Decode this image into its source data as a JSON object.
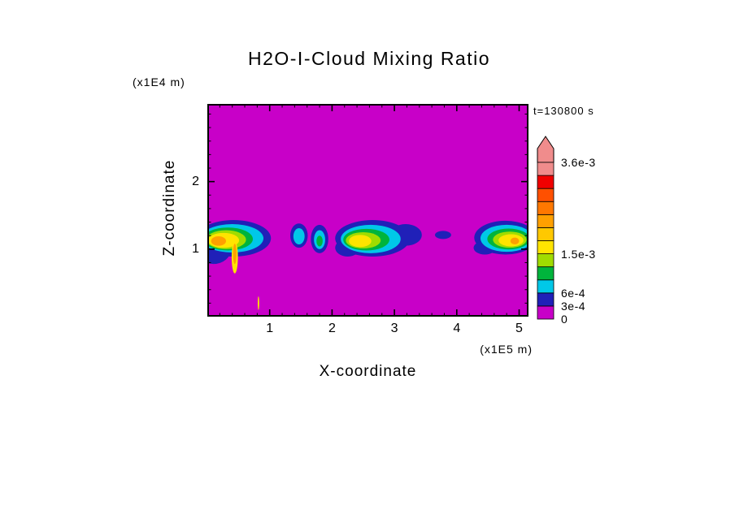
{
  "chart_data": {
    "type": "heatmap",
    "title": "H2O-I-Cloud Mixing Ratio",
    "time_label": "t=130800 s",
    "x_axis": {
      "label": "X-coordinate",
      "unit": "(x1E5 m)",
      "range": [
        0,
        5.15
      ],
      "major_ticks": [
        1,
        2,
        3,
        4,
        5
      ],
      "minor_step": 0.2
    },
    "z_axis": {
      "label": "Z-coordinate",
      "unit": "(x1E4 m)",
      "range": [
        0,
        3.15
      ],
      "major_ticks": [
        1,
        2
      ],
      "minor_step": 0.2
    },
    "background_color": "#c800c8",
    "background_value": 0,
    "colorbar": {
      "levels": [
        0,
        0.0003,
        0.0006,
        0.0009,
        0.0012,
        0.0015,
        0.0018,
        0.0021,
        0.0024,
        0.0027,
        0.003,
        0.0033,
        0.0036
      ],
      "colors": [
        "#c800c8",
        "#2020b8",
        "#00c8e8",
        "#00b43c",
        "#a0dc00",
        "#ffe400",
        "#ffc800",
        "#ffa000",
        "#ff7800",
        "#ff5000",
        "#f00000",
        "#f08c8c"
      ],
      "overflow_color": "#f08c8c",
      "labels": [
        {
          "text": "3.6e-3",
          "value": 0.0036
        },
        {
          "text": "1.5e-3",
          "value": 0.0015
        },
        {
          "text": "6e-4",
          "value": 0.0006
        },
        {
          "text": "3e-4",
          "value": 0.0003
        },
        {
          "text": "0",
          "value": 0
        }
      ]
    },
    "features": [
      {
        "x": 0.42,
        "z": 1.16,
        "rx": 0.6,
        "rz": 0.27,
        "v": 0.0004
      },
      {
        "x": 0.1,
        "z": 1.0,
        "rx": 0.28,
        "rz": 0.22,
        "v": 0.0004
      },
      {
        "x": 0.78,
        "z": 1.24,
        "rx": 0.17,
        "rz": 0.11,
        "v": 0.0004
      },
      {
        "x": 0.4,
        "z": 1.16,
        "rx": 0.5,
        "rz": 0.21,
        "v": 0.0007
      },
      {
        "x": 0.33,
        "z": 1.15,
        "rx": 0.4,
        "rz": 0.17,
        "v": 0.001
      },
      {
        "x": 0.3,
        "z": 1.14,
        "rx": 0.32,
        "rz": 0.14,
        "v": 0.0013
      },
      {
        "x": 0.26,
        "z": 1.13,
        "rx": 0.25,
        "rz": 0.11,
        "v": 0.0016
      },
      {
        "x": 0.18,
        "z": 1.12,
        "rx": 0.12,
        "rz": 0.07,
        "v": 0.0022
      },
      {
        "x": 0.44,
        "z": 0.88,
        "rx": 0.05,
        "rz": 0.24,
        "v": 0.0016
      },
      {
        "x": 0.44,
        "z": 0.93,
        "rx": 0.028,
        "rz": 0.15,
        "v": 0.0022
      },
      {
        "x": 1.47,
        "z": 1.2,
        "rx": 0.14,
        "rz": 0.18,
        "v": 0.0004
      },
      {
        "x": 1.47,
        "z": 1.19,
        "rx": 0.09,
        "rz": 0.12,
        "v": 0.0007
      },
      {
        "x": 1.8,
        "z": 1.15,
        "rx": 0.14,
        "rz": 0.21,
        "v": 0.0004
      },
      {
        "x": 1.8,
        "z": 1.14,
        "rx": 0.09,
        "rz": 0.14,
        "v": 0.0007
      },
      {
        "x": 1.8,
        "z": 1.12,
        "rx": 0.05,
        "rz": 0.08,
        "v": 0.001
      },
      {
        "x": 2.65,
        "z": 1.16,
        "rx": 0.6,
        "rz": 0.27,
        "v": 0.0004
      },
      {
        "x": 3.18,
        "z": 1.21,
        "rx": 0.26,
        "rz": 0.16,
        "v": 0.0004
      },
      {
        "x": 2.25,
        "z": 1.02,
        "rx": 0.2,
        "rz": 0.13,
        "v": 0.0004
      },
      {
        "x": 2.62,
        "z": 1.15,
        "rx": 0.48,
        "rz": 0.21,
        "v": 0.0007
      },
      {
        "x": 2.55,
        "z": 1.14,
        "rx": 0.37,
        "rz": 0.16,
        "v": 0.001
      },
      {
        "x": 2.5,
        "z": 1.13,
        "rx": 0.28,
        "rz": 0.12,
        "v": 0.0013
      },
      {
        "x": 2.45,
        "z": 1.12,
        "rx": 0.18,
        "rz": 0.09,
        "v": 0.0016
      },
      {
        "x": 3.78,
        "z": 1.21,
        "rx": 0.13,
        "rz": 0.06,
        "v": 0.0004
      },
      {
        "x": 4.78,
        "z": 1.17,
        "rx": 0.5,
        "rz": 0.25,
        "v": 0.0004
      },
      {
        "x": 4.45,
        "z": 1.02,
        "rx": 0.18,
        "rz": 0.1,
        "v": 0.0004
      },
      {
        "x": 4.8,
        "z": 1.16,
        "rx": 0.42,
        "rz": 0.2,
        "v": 0.0007
      },
      {
        "x": 4.83,
        "z": 1.15,
        "rx": 0.34,
        "rz": 0.155,
        "v": 0.001
      },
      {
        "x": 4.85,
        "z": 1.14,
        "rx": 0.27,
        "rz": 0.12,
        "v": 0.0013
      },
      {
        "x": 4.87,
        "z": 1.13,
        "rx": 0.2,
        "rz": 0.09,
        "v": 0.0016
      },
      {
        "x": 4.93,
        "z": 1.12,
        "rx": 0.07,
        "rz": 0.05,
        "v": 0.0022
      },
      {
        "x": 0.82,
        "z": 0.2,
        "rx": 0.012,
        "rz": 0.1,
        "v": 0.0016
      }
    ]
  }
}
